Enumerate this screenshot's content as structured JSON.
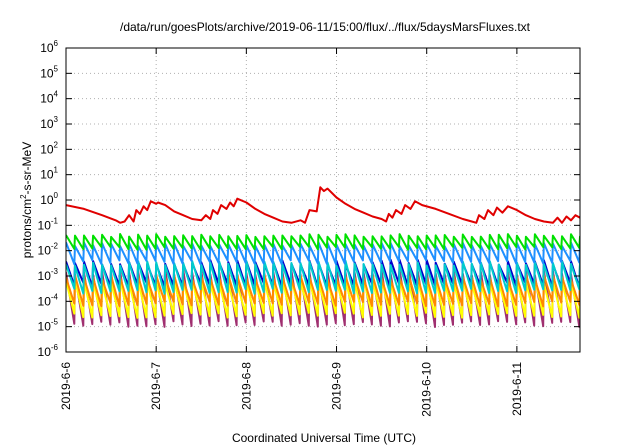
{
  "chart_data": {
    "type": "line",
    "title": "/data/run/goesPlots/archive/2019-06-11/15:00/flux/../flux/5daysMarsFluxes.txt",
    "xlabel": "Coordinated Universal Time (UTC)",
    "ylabel": "protons/cm²-s-sr-MeV",
    "ylabel_parts": {
      "before": "protons/cm",
      "sup": "2",
      "after": "-s-sr-MeV"
    },
    "yscale": "log",
    "ylim": [
      1e-06,
      1000000.0
    ],
    "xlim_days": [
      0,
      5.7
    ],
    "grid": true,
    "x_ticks": [
      {
        "day": 0,
        "label": "2019-6-6"
      },
      {
        "day": 1,
        "label": "2019-6-7"
      },
      {
        "day": 2,
        "label": "2019-6-8"
      },
      {
        "day": 3,
        "label": "2019-6-9"
      },
      {
        "day": 4,
        "label": "2019-6-10"
      },
      {
        "day": 5,
        "label": "2019-6-11"
      }
    ],
    "y_ticks": [
      {
        "exp": -6,
        "base": "10",
        "sup": "-6"
      },
      {
        "exp": -5,
        "base": "10",
        "sup": "-5"
      },
      {
        "exp": -4,
        "base": "10",
        "sup": "-4"
      },
      {
        "exp": -3,
        "base": "10",
        "sup": "-3"
      },
      {
        "exp": -2,
        "base": "10",
        "sup": "-2"
      },
      {
        "exp": -1,
        "base": "10",
        "sup": "-1"
      },
      {
        "exp": 0,
        "base": "10",
        "sup": "0"
      },
      {
        "exp": 1,
        "base": "10",
        "sup": "1"
      },
      {
        "exp": 2,
        "base": "10",
        "sup": "2"
      },
      {
        "exp": 3,
        "base": "10",
        "sup": "3"
      },
      {
        "exp": 4,
        "base": "10",
        "sup": "4"
      },
      {
        "exp": 5,
        "base": "10",
        "sup": "5"
      },
      {
        "exp": 6,
        "base": "10",
        "sup": "6"
      }
    ],
    "series": [
      {
        "color": "#e00000",
        "log_values": [
          [
            0.0,
            -0.2
          ],
          [
            0.2,
            -0.35
          ],
          [
            0.4,
            -0.6
          ],
          [
            0.55,
            -0.8
          ],
          [
            0.6,
            -0.9
          ],
          [
            0.65,
            -0.85
          ],
          [
            0.7,
            -0.6
          ],
          [
            0.75,
            -0.85
          ],
          [
            0.78,
            -0.4
          ],
          [
            0.82,
            -0.55
          ],
          [
            0.86,
            -0.25
          ],
          [
            0.9,
            -0.4
          ],
          [
            0.94,
            -0.05
          ],
          [
            1.0,
            -0.15
          ],
          [
            1.02,
            -0.1
          ],
          [
            1.1,
            -0.2
          ],
          [
            1.2,
            -0.45
          ],
          [
            1.3,
            -0.6
          ],
          [
            1.4,
            -0.75
          ],
          [
            1.5,
            -0.8
          ],
          [
            1.55,
            -0.6
          ],
          [
            1.6,
            -0.75
          ],
          [
            1.63,
            -0.4
          ],
          [
            1.68,
            -0.55
          ],
          [
            1.72,
            -0.2
          ],
          [
            1.78,
            -0.35
          ],
          [
            1.82,
            -0.1
          ],
          [
            1.86,
            -0.25
          ],
          [
            1.9,
            0.05
          ],
          [
            2.0,
            -0.1
          ],
          [
            2.1,
            -0.35
          ],
          [
            2.2,
            -0.55
          ],
          [
            2.3,
            -0.7
          ],
          [
            2.4,
            -0.85
          ],
          [
            2.5,
            -0.9
          ],
          [
            2.6,
            -0.8
          ],
          [
            2.65,
            -0.9
          ],
          [
            2.7,
            -0.4
          ],
          [
            2.78,
            -0.45
          ],
          [
            2.82,
            0.5
          ],
          [
            2.86,
            0.35
          ],
          [
            2.9,
            0.45
          ],
          [
            3.0,
            0.1
          ],
          [
            3.1,
            -0.15
          ],
          [
            3.2,
            -0.35
          ],
          [
            3.3,
            -0.5
          ],
          [
            3.4,
            -0.65
          ],
          [
            3.5,
            -0.75
          ],
          [
            3.55,
            -0.85
          ],
          [
            3.58,
            -0.55
          ],
          [
            3.62,
            -0.7
          ],
          [
            3.66,
            -0.4
          ],
          [
            3.72,
            -0.55
          ],
          [
            3.76,
            -0.2
          ],
          [
            3.82,
            -0.35
          ],
          [
            3.87,
            -0.05
          ],
          [
            3.95,
            -0.2
          ],
          [
            4.1,
            -0.35
          ],
          [
            4.25,
            -0.55
          ],
          [
            4.4,
            -0.75
          ],
          [
            4.5,
            -0.85
          ],
          [
            4.55,
            -0.9
          ],
          [
            4.58,
            -0.6
          ],
          [
            4.64,
            -0.75
          ],
          [
            4.68,
            -0.4
          ],
          [
            4.74,
            -0.6
          ],
          [
            4.78,
            -0.3
          ],
          [
            4.84,
            -0.5
          ],
          [
            4.9,
            -0.25
          ],
          [
            5.0,
            -0.4
          ],
          [
            5.1,
            -0.6
          ],
          [
            5.2,
            -0.75
          ],
          [
            5.3,
            -0.85
          ],
          [
            5.4,
            -0.9
          ],
          [
            5.45,
            -0.7
          ],
          [
            5.5,
            -0.9
          ],
          [
            5.55,
            -0.65
          ],
          [
            5.6,
            -0.8
          ],
          [
            5.65,
            -0.6
          ],
          [
            5.7,
            -0.7
          ]
        ]
      },
      {
        "color": "#00e000",
        "period": 0.1,
        "high": -1.4,
        "low": -1.9,
        "jitter": 0.06
      },
      {
        "color": "#1e90ff",
        "period": 0.1,
        "high": -1.75,
        "low": -2.45,
        "jitter": 0.08
      },
      {
        "color": "#00cccc",
        "period": 0.1,
        "high": -2.5,
        "low": -3.6,
        "jitter": 0.1
      },
      {
        "color": "#0000cc",
        "period": 0.1,
        "high": -2.45,
        "low": -3.35,
        "jitter": 0.1
      },
      {
        "color": "#ff8800",
        "period": 0.1,
        "high": -3.05,
        "low": -4.1,
        "jitter": 0.1
      },
      {
        "color": "#ffff00",
        "period": 0.1,
        "high": -3.2,
        "low": -4.55,
        "jitter": 0.1
      },
      {
        "color": "#a03070",
        "period": 0.1,
        "high": -2.85,
        "low": -4.9,
        "jitter": 0.12
      }
    ]
  }
}
